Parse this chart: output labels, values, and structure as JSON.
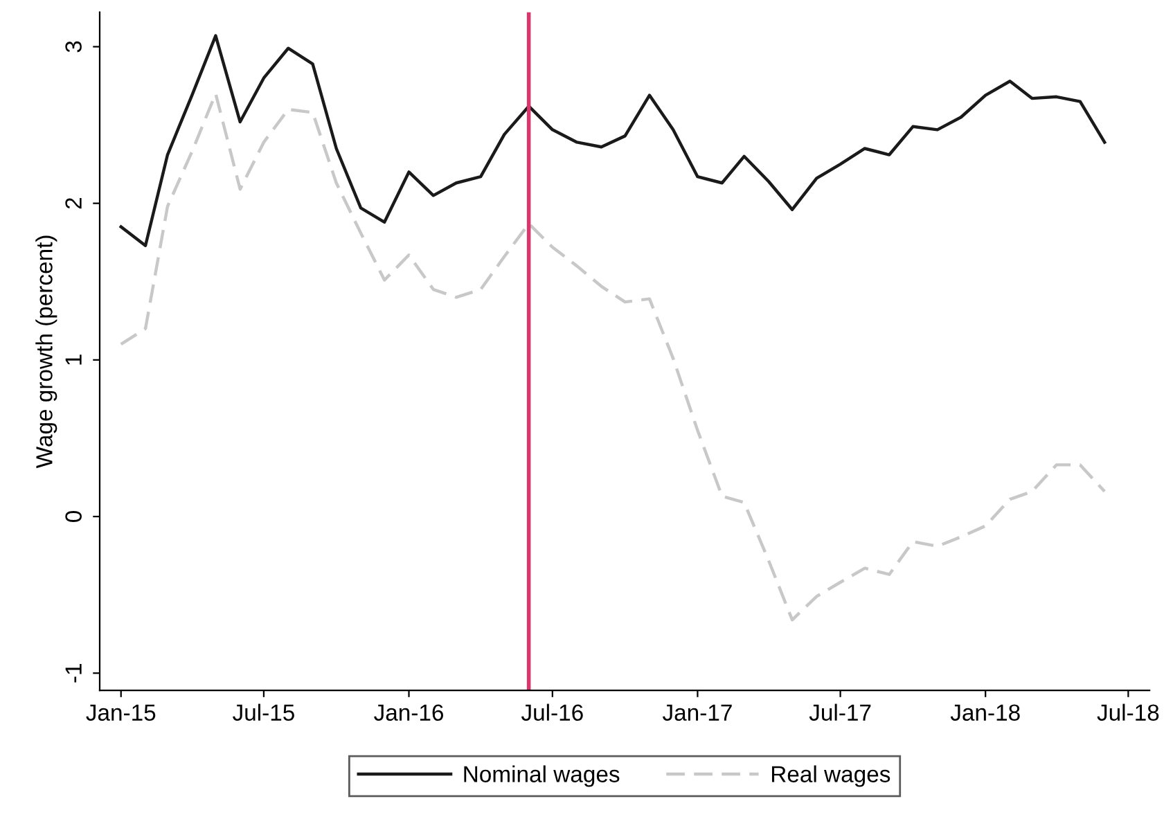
{
  "chart_data": {
    "type": "line",
    "ylabel": "Wage growth (percent)",
    "x": [
      "2015-01",
      "2015-02",
      "2015-03",
      "2015-04",
      "2015-05",
      "2015-06",
      "2015-07",
      "2015-08",
      "2015-09",
      "2015-10",
      "2015-11",
      "2015-12",
      "2016-01",
      "2016-02",
      "2016-03",
      "2016-04",
      "2016-05",
      "2016-06",
      "2016-07",
      "2016-08",
      "2016-09",
      "2016-10",
      "2016-11",
      "2016-12",
      "2017-01",
      "2017-02",
      "2017-03",
      "2017-04",
      "2017-05",
      "2017-06",
      "2017-07",
      "2017-08",
      "2017-09",
      "2017-10",
      "2017-11",
      "2017-12",
      "2018-01",
      "2018-02",
      "2018-03",
      "2018-04",
      "2018-05",
      "2018-06"
    ],
    "series": [
      {
        "name": "Nominal wages",
        "color": "#1a1a1a",
        "line_style": "solid",
        "values": [
          1.85,
          1.73,
          2.31,
          2.69,
          3.07,
          2.52,
          2.8,
          2.99,
          2.89,
          2.35,
          1.97,
          1.88,
          2.2,
          2.05,
          2.13,
          2.17,
          2.44,
          2.62,
          2.47,
          2.39,
          2.36,
          2.43,
          2.69,
          2.47,
          2.17,
          2.13,
          2.3,
          2.14,
          1.96,
          2.16,
          2.25,
          2.35,
          2.31,
          2.49,
          2.47,
          2.55,
          2.69,
          2.78,
          2.67,
          2.68,
          2.65,
          2.39
        ]
      },
      {
        "name": "Real wages",
        "color": "#c8c8c8",
        "line_style": "dashed",
        "values": [
          1.1,
          1.2,
          1.98,
          2.33,
          2.7,
          2.09,
          2.39,
          2.6,
          2.58,
          2.13,
          1.81,
          1.51,
          1.67,
          1.45,
          1.4,
          1.45,
          1.66,
          1.87,
          1.72,
          1.6,
          1.47,
          1.37,
          1.39,
          1.01,
          0.55,
          0.13,
          0.09,
          -0.28,
          -0.66,
          -0.51,
          -0.42,
          -0.33,
          -0.37,
          -0.16,
          -0.19,
          -0.13,
          -0.06,
          0.11,
          0.16,
          0.33,
          0.33,
          0.16
        ]
      }
    ],
    "xlim": [
      "2014-12-05",
      "2018-07-28"
    ],
    "xticks": [
      {
        "value": "2015-01",
        "label": "Jan-15"
      },
      {
        "value": "2015-07",
        "label": "Jul-15"
      },
      {
        "value": "2016-01",
        "label": "Jan-16"
      },
      {
        "value": "2016-07",
        "label": "Jul-16"
      },
      {
        "value": "2017-01",
        "label": "Jan-17"
      },
      {
        "value": "2017-07",
        "label": "Jul-17"
      },
      {
        "value": "2018-01",
        "label": "Jan-18"
      },
      {
        "value": "2018-07",
        "label": "Jul-18"
      }
    ],
    "ylim": [
      -1.11,
      3.22
    ],
    "yticks": [
      -1,
      0,
      1,
      2,
      3
    ],
    "ref_lines": [
      {
        "axis": "x",
        "value": "2016-06",
        "color": "#d9356e",
        "line_style": "solid"
      }
    ],
    "legend": "bottom",
    "grid": false,
    "marker": "none"
  }
}
